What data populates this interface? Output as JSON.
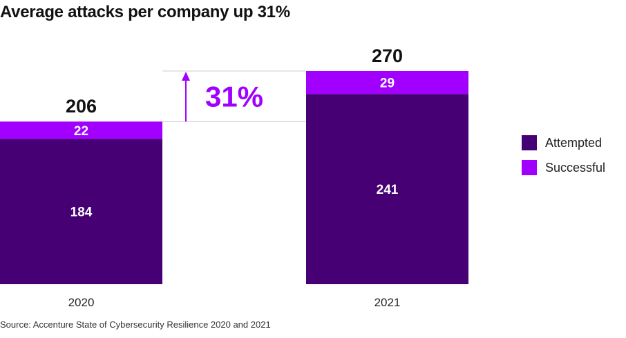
{
  "chart_data": {
    "type": "bar",
    "stacked": true,
    "title": "Average attacks per company up 31%",
    "categories": [
      "2020",
      "2021"
    ],
    "series": [
      {
        "name": "Attempted",
        "values": [
          184,
          241
        ],
        "color": "#460073"
      },
      {
        "name": "Successful",
        "values": [
          22,
          29
        ],
        "color": "#A100FF"
      }
    ],
    "totals": [
      "206",
      "270"
    ],
    "change_label": "31%",
    "change_color": "#A100FF",
    "ylim": [
      0,
      270
    ],
    "legend_position": "right",
    "source": "Source: Accenture State of Cybersecurity Resilience 2020 and 2021"
  }
}
